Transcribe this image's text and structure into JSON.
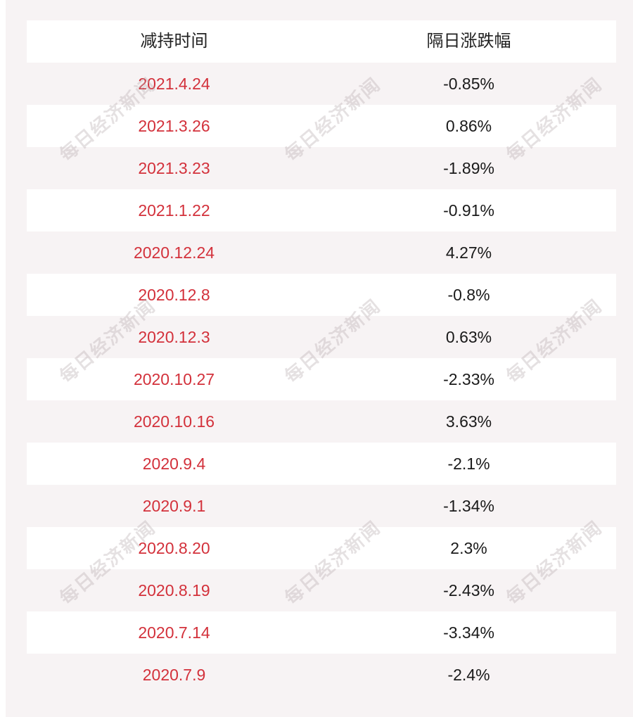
{
  "table": {
    "headers": {
      "date": "减持时间",
      "change": "隔日涨跌幅"
    },
    "rows": [
      {
        "date": "2021.4.24",
        "change": "-0.85%"
      },
      {
        "date": "2021.3.26",
        "change": "0.86%"
      },
      {
        "date": "2021.3.23",
        "change": "-1.89%"
      },
      {
        "date": "2021.1.22",
        "change": "-0.91%"
      },
      {
        "date": "2020.12.24",
        "change": "4.27%"
      },
      {
        "date": "2020.12.8",
        "change": "-0.8%"
      },
      {
        "date": "2020.12.3",
        "change": "0.63%"
      },
      {
        "date": "2020.10.27",
        "change": "-2.33%"
      },
      {
        "date": "2020.10.16",
        "change": "3.63%"
      },
      {
        "date": "2020.9.4",
        "change": "-2.1%"
      },
      {
        "date": "2020.9.1",
        "change": "-1.34%"
      },
      {
        "date": "2020.8.20",
        "change": "2.3%"
      },
      {
        "date": "2020.8.19",
        "change": "-2.43%"
      },
      {
        "date": "2020.7.14",
        "change": "-3.34%"
      },
      {
        "date": "2020.7.9",
        "change": "-2.4%"
      }
    ]
  },
  "watermark": {
    "text": "每日经济新闻"
  },
  "colors": {
    "date_text": "#d3313b",
    "change_text": "#1a1a1a",
    "stripe_white": "#ffffff",
    "stripe_tint": "#f7f3f4"
  }
}
